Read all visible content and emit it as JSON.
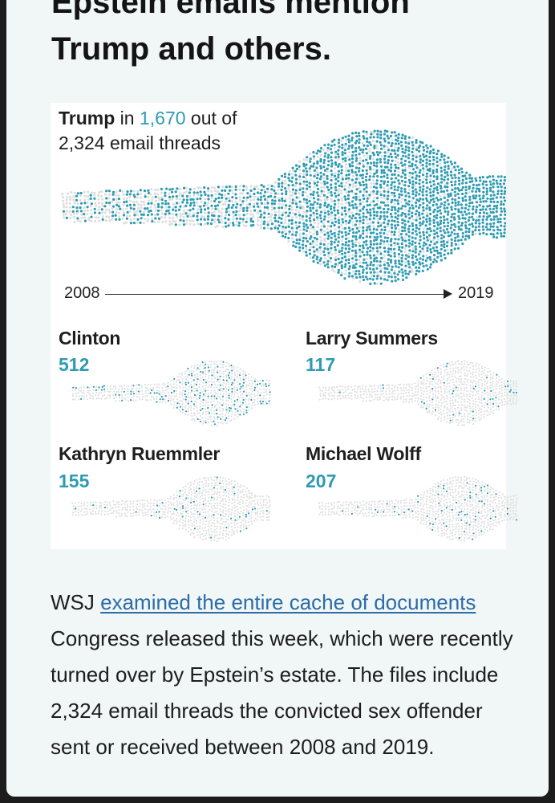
{
  "headline": {
    "line1": "Epstein emails mention",
    "line2": "Trump and others."
  },
  "trump": {
    "name": "Trump",
    "in_word": "in",
    "count": "1,670",
    "out_of": "out of",
    "total_text": "2,324 email threads",
    "total_threads": 2324,
    "mention_threads": 1670
  },
  "axis": {
    "start": "2008",
    "end": "2019"
  },
  "people": [
    {
      "name": "Clinton",
      "count_label": "512",
      "count": 512
    },
    {
      "name": "Larry Summers",
      "count_label": "117",
      "count": 117
    },
    {
      "name": "Kathryn Ruemmler",
      "count_label": "155",
      "count": 155
    },
    {
      "name": "Michael Wolff",
      "count_label": "207",
      "count": 207
    }
  ],
  "article": {
    "lead": "WSJ",
    "link_text": "examined the entire cache of documents",
    "rest": "Congress released this week, which were recently turned over by Epstein’s estate. The files include 2,324 email threads the convicted sex offender sent or received between 2008 and 2019."
  },
  "colors": {
    "accent": "#2e9bb2",
    "dot_gray": "#dedede",
    "link": "#2c6ba8",
    "card_bg": "#f1f7f6"
  }
}
